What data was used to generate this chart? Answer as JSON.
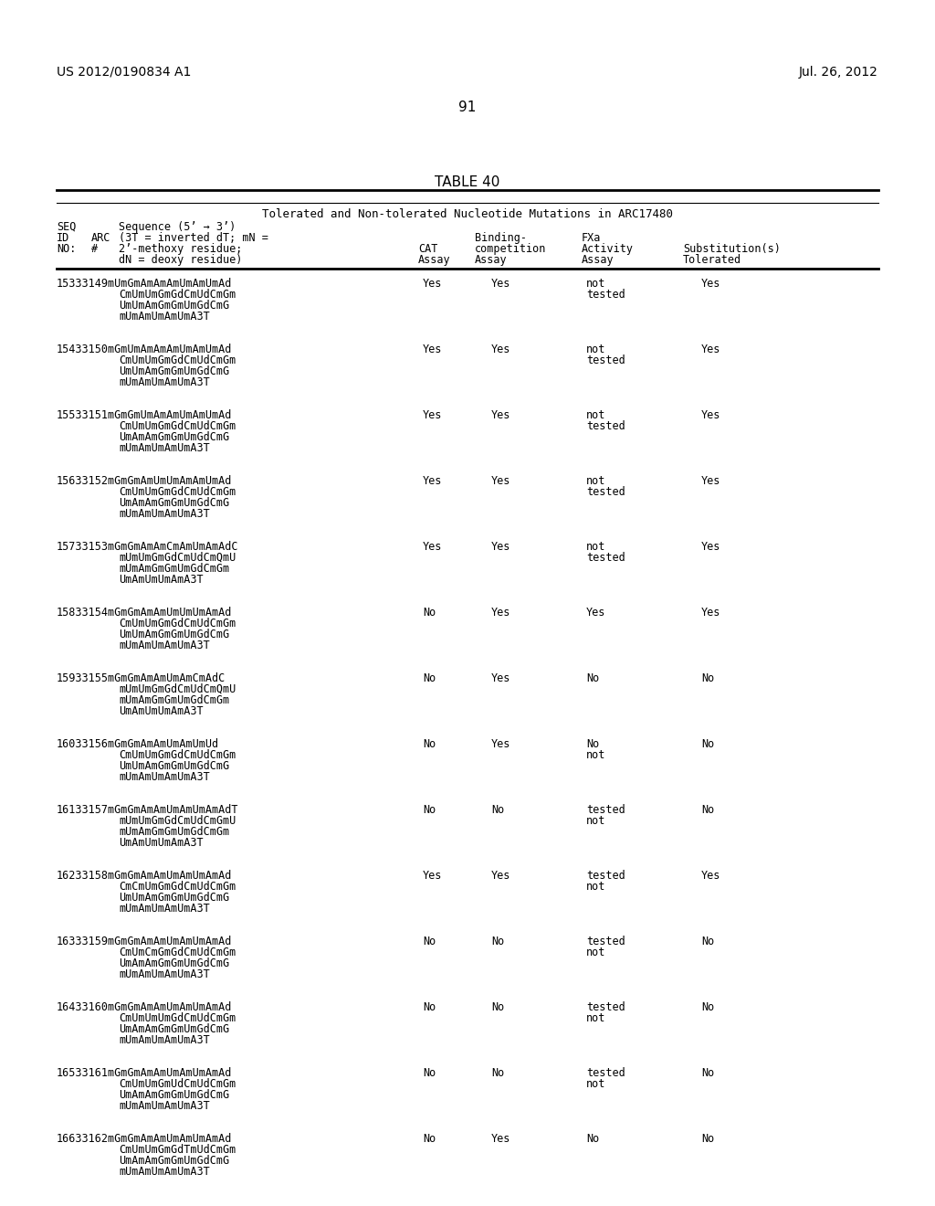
{
  "header_left": "US 2012/0190834 A1",
  "header_right": "Jul. 26, 2012",
  "page_number": "91",
  "table_title": "TABLE 40",
  "table_subtitle": "Tolerated and Non-tolerated Nucleotide Mutations in ARC17480",
  "rows": [
    {
      "ids": "15333149",
      "sequence_lines": [
        "mUmGmAmAmAmUmAmUmAd",
        "CmUmUmGmGdCmUdCmGm",
        "UmUmAmGmGmUmGdCmG",
        "mUmAmUmAmUmA3T"
      ],
      "cat": "Yes",
      "binding": "Yes",
      "fxa1": "not",
      "fxa2": "tested",
      "subst": "Yes"
    },
    {
      "ids": "15433150",
      "sequence_lines": [
        "mGmUmAmAmAmUmAmUmAd",
        "CmUmUmGmGdCmUdCmGm",
        "UmUmAmGmGmUmGdCmG",
        "mUmAmUmAmUmA3T"
      ],
      "cat": "Yes",
      "binding": "Yes",
      "fxa1": "not",
      "fxa2": "tested",
      "subst": "Yes"
    },
    {
      "ids": "15533151",
      "sequence_lines": [
        "mGmGmUmAmAmUmAmUmAd",
        "CmUmUmGmGdCmUdCmGm",
        "UmAmAmGmGmUmGdCmG",
        "mUmAmUmAmUmA3T"
      ],
      "cat": "Yes",
      "binding": "Yes",
      "fxa1": "not",
      "fxa2": "tested",
      "subst": "Yes"
    },
    {
      "ids": "15633152",
      "sequence_lines": [
        "mGmGmAmUmUmAmAmUmAd",
        "CmUmUmGmGdCmUdCmGm",
        "UmAmAmGmGmUmGdCmG",
        "mUmAmUmAmUmA3T"
      ],
      "cat": "Yes",
      "binding": "Yes",
      "fxa1": "not",
      "fxa2": "tested",
      "subst": "Yes"
    },
    {
      "ids": "15733153",
      "sequence_lines": [
        "mGmGmAmAmCmAmUmAmAdC",
        "mUmUmGmGdCmUdCmQmU",
        "mUmAmGmGmUmGdCmGm",
        "UmAmUmUmAmA3T"
      ],
      "cat": "Yes",
      "binding": "Yes",
      "fxa1": "not",
      "fxa2": "tested",
      "subst": "Yes"
    },
    {
      "ids": "15833154",
      "sequence_lines": [
        "mGmGmAmAmUmUmUmAmAd",
        "CmUmUmGmGdCmUdCmGm",
        "UmUmAmGmGmUmGdCmG",
        "mUmAmUmAmUmA3T"
      ],
      "cat": "No",
      "binding": "Yes",
      "fxa1": "Yes",
      "fxa2": "",
      "subst": "Yes"
    },
    {
      "ids": "15933155",
      "sequence_lines": [
        "mGmGmAmAmUmAmCmAdC",
        "mUmUmGmGdCmUdCmQmU",
        "mUmAmGmGmUmGdCmGm",
        "UmAmUmUmAmA3T"
      ],
      "cat": "No",
      "binding": "Yes",
      "fxa1": "No",
      "fxa2": "",
      "subst": "No"
    },
    {
      "ids": "16033156",
      "sequence_lines": [
        "mGmGmAmAmUmAmUmUd",
        "CmUmUmGmGdCmUdCmGm",
        "UmUmAmGmGmUmGdCmG",
        "mUmAmUmAmUmA3T"
      ],
      "cat": "No",
      "binding": "Yes",
      "fxa1": "No",
      "fxa2": "not",
      "subst": "No"
    },
    {
      "ids": "16133157",
      "sequence_lines": [
        "mGmGmAmAmUmAmUmAmAdT",
        "mUmUmGmGdCmUdCmGmU",
        "mUmAmGmGmUmGdCmGm",
        "UmAmUmUmAmA3T"
      ],
      "cat": "No",
      "binding": "No",
      "fxa1": "tested",
      "fxa2": "not",
      "subst": "No"
    },
    {
      "ids": "16233158",
      "sequence_lines": [
        "mGmGmAmAmUmAmUmAmAd",
        "CmCmUmGmGdCmUdCmGm",
        "UmUmAmGmGmUmGdCmG",
        "mUmAmUmAmUmA3T"
      ],
      "cat": "Yes",
      "binding": "Yes",
      "fxa1": "tested",
      "fxa2": "not",
      "subst": "Yes"
    },
    {
      "ids": "16333159",
      "sequence_lines": [
        "mGmGmAmAmUmAmUmAmAd",
        "CmUmCmGmGdCmUdCmGm",
        "UmAmAmGmGmUmGdCmG",
        "mUmAmUmAmUmA3T"
      ],
      "cat": "No",
      "binding": "No",
      "fxa1": "tested",
      "fxa2": "not",
      "subst": "No"
    },
    {
      "ids": "16433160",
      "sequence_lines": [
        "mGmGmAmAmUmAmUmAmAd",
        "CmUmUmUmGdCmUdCmGm",
        "UmAmAmGmGmUmGdCmG",
        "mUmAmUmAmUmA3T"
      ],
      "cat": "No",
      "binding": "No",
      "fxa1": "tested",
      "fxa2": "not",
      "subst": "No"
    },
    {
      "ids": "16533161",
      "sequence_lines": [
        "mGmGmAmAmUmAmUmAmAd",
        "CmUmUmGmUdCmUdCmGm",
        "UmAmAmGmGmUmGdCmG",
        "mUmAmUmAmUmA3T"
      ],
      "cat": "No",
      "binding": "No",
      "fxa1": "tested",
      "fxa2": "not",
      "subst": "No"
    },
    {
      "ids": "16633162",
      "sequence_lines": [
        "mGmGmAmAmUmAmUmAmAd",
        "CmUmUmGmGdTmUdCmGm",
        "UmAmAmGmGmUmGdCmG",
        "mUmAmUmAmUmA3T"
      ],
      "cat": "No",
      "binding": "Yes",
      "fxa1": "No",
      "fxa2": "",
      "subst": "No"
    }
  ]
}
